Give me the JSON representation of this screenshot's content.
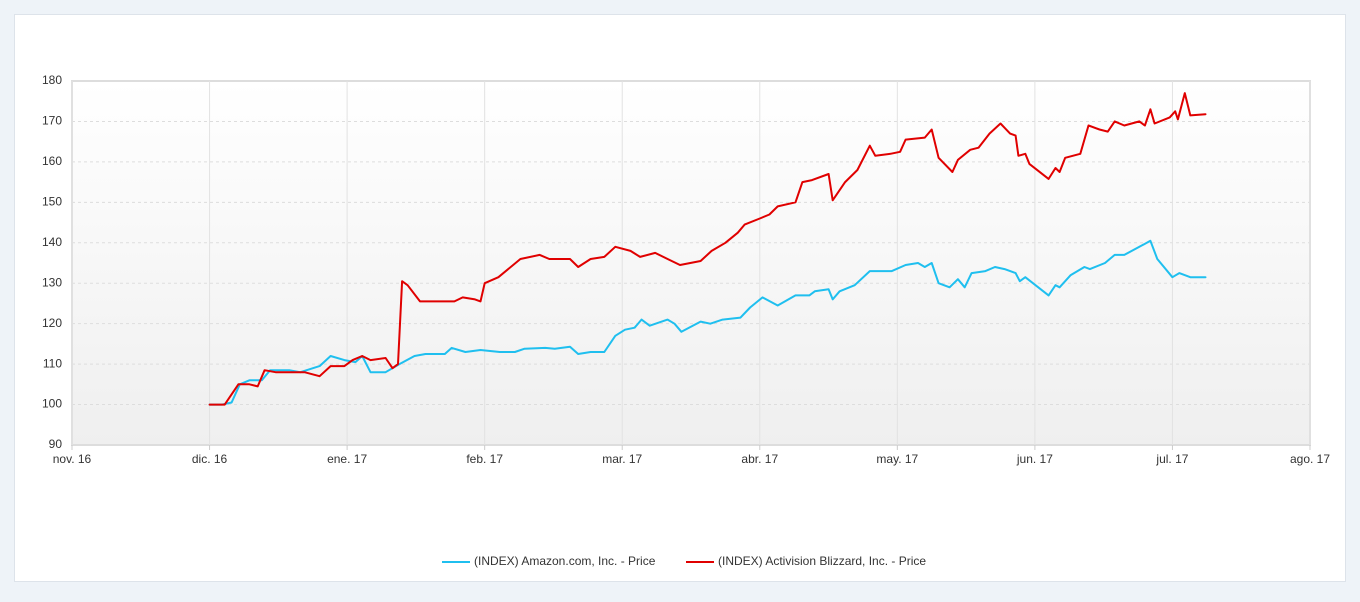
{
  "chart_data": {
    "type": "line",
    "xlim": [
      0,
      9
    ],
    "xticks": [
      {
        "value": 0,
        "label": "nov. 16"
      },
      {
        "value": 1,
        "label": "dic. 16"
      },
      {
        "value": 2,
        "label": "ene. 17"
      },
      {
        "value": 3,
        "label": "feb. 17"
      },
      {
        "value": 4,
        "label": "mar. 17"
      },
      {
        "value": 5,
        "label": "abr. 17"
      },
      {
        "value": 6,
        "label": "may. 17"
      },
      {
        "value": 7,
        "label": "jun. 17"
      },
      {
        "value": 8,
        "label": "jul. 17"
      },
      {
        "value": 9,
        "label": "ago. 17"
      }
    ],
    "ylim": [
      90,
      180
    ],
    "yticks": [
      90,
      100,
      110,
      120,
      130,
      140,
      150,
      160,
      170,
      180
    ],
    "grid": true,
    "legend": "bottom",
    "series": [
      {
        "name": "(INDEX) Amazon.com, Inc. - Price",
        "color": "#1fbfef",
        "x": [
          1.0,
          1.09,
          1.16,
          1.22,
          1.29,
          1.38,
          1.44,
          1.58,
          1.66,
          1.8,
          1.88,
          1.98,
          2.06,
          2.11,
          2.17,
          2.28,
          2.38,
          2.49,
          2.57,
          2.71,
          2.76,
          2.86,
          2.97,
          3.11,
          3.22,
          3.29,
          3.44,
          3.51,
          3.62,
          3.68,
          3.77,
          3.87,
          3.95,
          4.02,
          4.09,
          4.14,
          4.2,
          4.33,
          4.38,
          4.43,
          4.57,
          4.64,
          4.73,
          4.86,
          4.93,
          5.02,
          5.13,
          5.26,
          5.36,
          5.4,
          5.5,
          5.53,
          5.58,
          5.69,
          5.8,
          5.96,
          6.06,
          6.15,
          6.2,
          6.25,
          6.3,
          6.38,
          6.44,
          6.49,
          6.54,
          6.64,
          6.71,
          6.78,
          6.86,
          6.89,
          6.93,
          7.1,
          7.15,
          7.18,
          7.26,
          7.36,
          7.4,
          7.51,
          7.58,
          7.65,
          7.76,
          7.84,
          7.89,
          8.0,
          8.05,
          8.13,
          8.24
        ],
        "values": [
          100,
          100,
          100.5,
          105,
          106,
          106,
          108.5,
          108.5,
          108,
          109.5,
          112,
          111,
          110.5,
          112,
          108,
          108,
          110,
          112,
          112.5,
          112.5,
          114,
          113,
          113.5,
          113,
          113,
          113.8,
          114,
          113.8,
          114.3,
          112.5,
          113,
          113,
          117,
          118.5,
          119,
          121,
          119.5,
          121,
          120,
          118,
          120.5,
          120,
          121,
          121.5,
          124,
          126.5,
          124.5,
          127,
          127,
          128,
          128.5,
          126,
          128,
          129.5,
          133,
          133,
          134.5,
          135,
          134,
          135,
          130,
          129,
          131,
          129,
          132.5,
          133,
          134,
          133.5,
          132.5,
          130.5,
          131.5,
          127,
          129.5,
          129,
          132,
          134,
          133.5,
          135,
          137,
          137,
          139,
          140.5,
          136,
          131.5,
          132.5,
          131.5,
          131.5
        ]
      },
      {
        "name": "(INDEX) Activision Blizzard, Inc. - Price",
        "color": "#e00000",
        "x": [
          1.0,
          1.11,
          1.21,
          1.29,
          1.35,
          1.4,
          1.48,
          1.62,
          1.69,
          1.8,
          1.88,
          1.98,
          2.04,
          2.11,
          2.17,
          2.28,
          2.33,
          2.37,
          2.4,
          2.44,
          2.53,
          2.6,
          2.78,
          2.84,
          2.93,
          2.97,
          3.0,
          3.1,
          3.26,
          3.4,
          3.47,
          3.62,
          3.68,
          3.77,
          3.87,
          3.95,
          4.06,
          4.13,
          4.24,
          4.33,
          4.42,
          4.57,
          4.65,
          4.75,
          4.84,
          4.89,
          5.0,
          5.07,
          5.13,
          5.26,
          5.31,
          5.38,
          5.5,
          5.53,
          5.62,
          5.71,
          5.8,
          5.84,
          5.95,
          6.02,
          6.06,
          6.2,
          6.25,
          6.3,
          6.4,
          6.44,
          6.53,
          6.59,
          6.67,
          6.75,
          6.82,
          6.86,
          6.88,
          6.93,
          6.96,
          7.1,
          7.15,
          7.18,
          7.22,
          7.33,
          7.39,
          7.47,
          7.53,
          7.58,
          7.65,
          7.76,
          7.8,
          7.84,
          7.87,
          7.98,
          8.02,
          8.04,
          8.09,
          8.13,
          8.24
        ],
        "values": [
          100,
          100,
          105,
          105,
          104.5,
          108.5,
          108,
          108,
          108,
          107,
          109.5,
          109.5,
          111,
          112,
          111,
          111.5,
          109,
          110,
          130.5,
          129.5,
          125.5,
          125.5,
          125.5,
          126.5,
          126,
          125.5,
          130,
          131.5,
          136,
          137,
          136,
          136,
          134,
          136,
          136.5,
          139,
          138,
          136.5,
          137.5,
          136,
          134.5,
          135.5,
          138,
          140,
          142.5,
          144.5,
          146,
          147,
          149,
          150,
          155,
          155.5,
          157,
          150.5,
          155,
          158,
          164,
          161.5,
          162,
          162.5,
          165.5,
          166,
          168,
          161,
          157.5,
          160.5,
          163,
          163.5,
          167,
          169.5,
          167,
          166.5,
          161.5,
          162,
          159.5,
          155.8,
          158.5,
          157.5,
          161,
          162,
          169,
          168,
          167.5,
          170,
          169,
          170,
          169,
          173,
          169.5,
          171,
          172.5,
          170.5,
          177,
          171.5,
          171.8
        ]
      }
    ]
  }
}
